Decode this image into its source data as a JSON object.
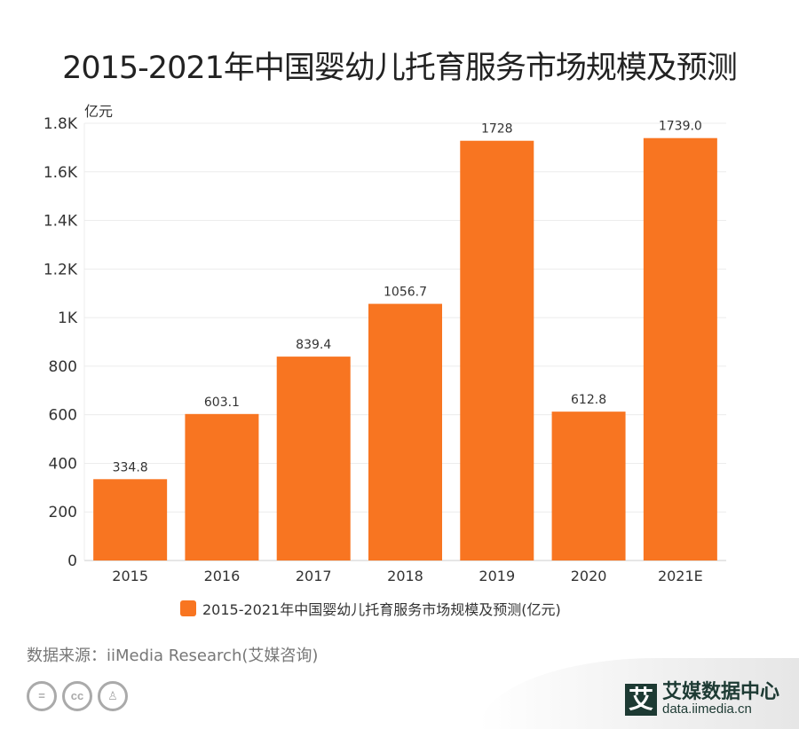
{
  "title": "2015-2021年中国婴幼儿托育服务市场规模及预测",
  "source": "数据来源：iiMedia Research(艾媒咨询)",
  "logo": {
    "name": "艾媒数据中心",
    "url": "data.iimedia.cn",
    "mark": "艾"
  },
  "license_icons": [
    "equals-icon",
    "cc-icon",
    "person-icon"
  ],
  "colors": {
    "bar": "#F87521",
    "grid": "#ececec",
    "axis": "#cccccc"
  },
  "chart_data": {
    "type": "bar",
    "title": "2015-2021年中国婴幼儿托育服务市场规模及预测",
    "ylabel": "亿元",
    "categories": [
      "2015",
      "2016",
      "2017",
      "2018",
      "2019",
      "2020",
      "2021E"
    ],
    "values": [
      334.8,
      603.1,
      839.4,
      1056.7,
      1728,
      612.8,
      1739.0
    ],
    "data_labels": [
      "334.8",
      "603.1",
      "839.4",
      "1056.7",
      "1728",
      "612.8",
      "1739.0"
    ],
    "ylim": [
      0,
      1800
    ],
    "yticks": [
      0,
      200,
      400,
      600,
      800,
      1000,
      1200,
      1400,
      1600,
      1800
    ],
    "ytick_labels": [
      "0",
      "200",
      "400",
      "600",
      "800",
      "1K",
      "1.2K",
      "1.4K",
      "1.6K",
      "1.8K"
    ],
    "grid": true,
    "legend": {
      "position": "bottom",
      "entries": [
        "2015-2021年中国婴幼儿托育服务市场规模及预测(亿元)"
      ]
    }
  }
}
